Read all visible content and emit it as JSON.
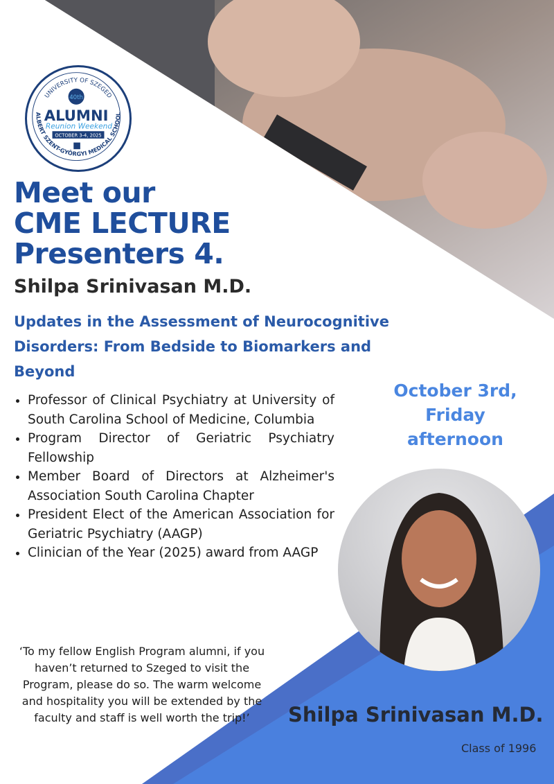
{
  "logo": {
    "top_arc": "UNIVERSITY OF SZEGED",
    "anniversary": "40th",
    "main": "ALUMNI",
    "script": "Reunion Weekend",
    "dates": "OCTOBER 3-4, 2025",
    "bottom_arc": "ALBERT SZENT-GYÖRGYI MEDICAL SCHOOL"
  },
  "title": [
    "Meet our",
    "CME LECTURE",
    "Presenters 4."
  ],
  "presenter_name": "Shilpa Srinivasan M.D.",
  "lecture_title": "Updates in the Assessment of Neurocognitive Disorders: From Bedside to Biomarkers and Beyond",
  "bullets": [
    "Professor of Clinical Psychiatry at University of South Carolina School of Medicine, Columbia",
    "Program Director of Geriatric Psychiatry Fellowship",
    "Member Board of Directors at Alzheimer's Association South Carolina Chapter",
    "President Elect of the American Association for Geriatric Psychiatry (AAGP)",
    "Clinician of the Year (2025) award from AAGP"
  ],
  "date": [
    "October 3rd,",
    "Friday",
    "afternoon"
  ],
  "quote": "‘To my fellow English Program alumni, if you haven’t returned to Szeged to visit the Program, please do so. The warm welcome and hospitality you will be extended by the faculty and staff is well worth the trip!’",
  "footer": {
    "name": "Shilpa Srinivasan M.D.",
    "class": "Class of 1996"
  },
  "colors": {
    "title": "#1f4e9c",
    "subtitle": "#2a5aa8",
    "date": "#4a86e0",
    "band_dark": "#4a6fc8",
    "band_light": "#4a80de"
  }
}
